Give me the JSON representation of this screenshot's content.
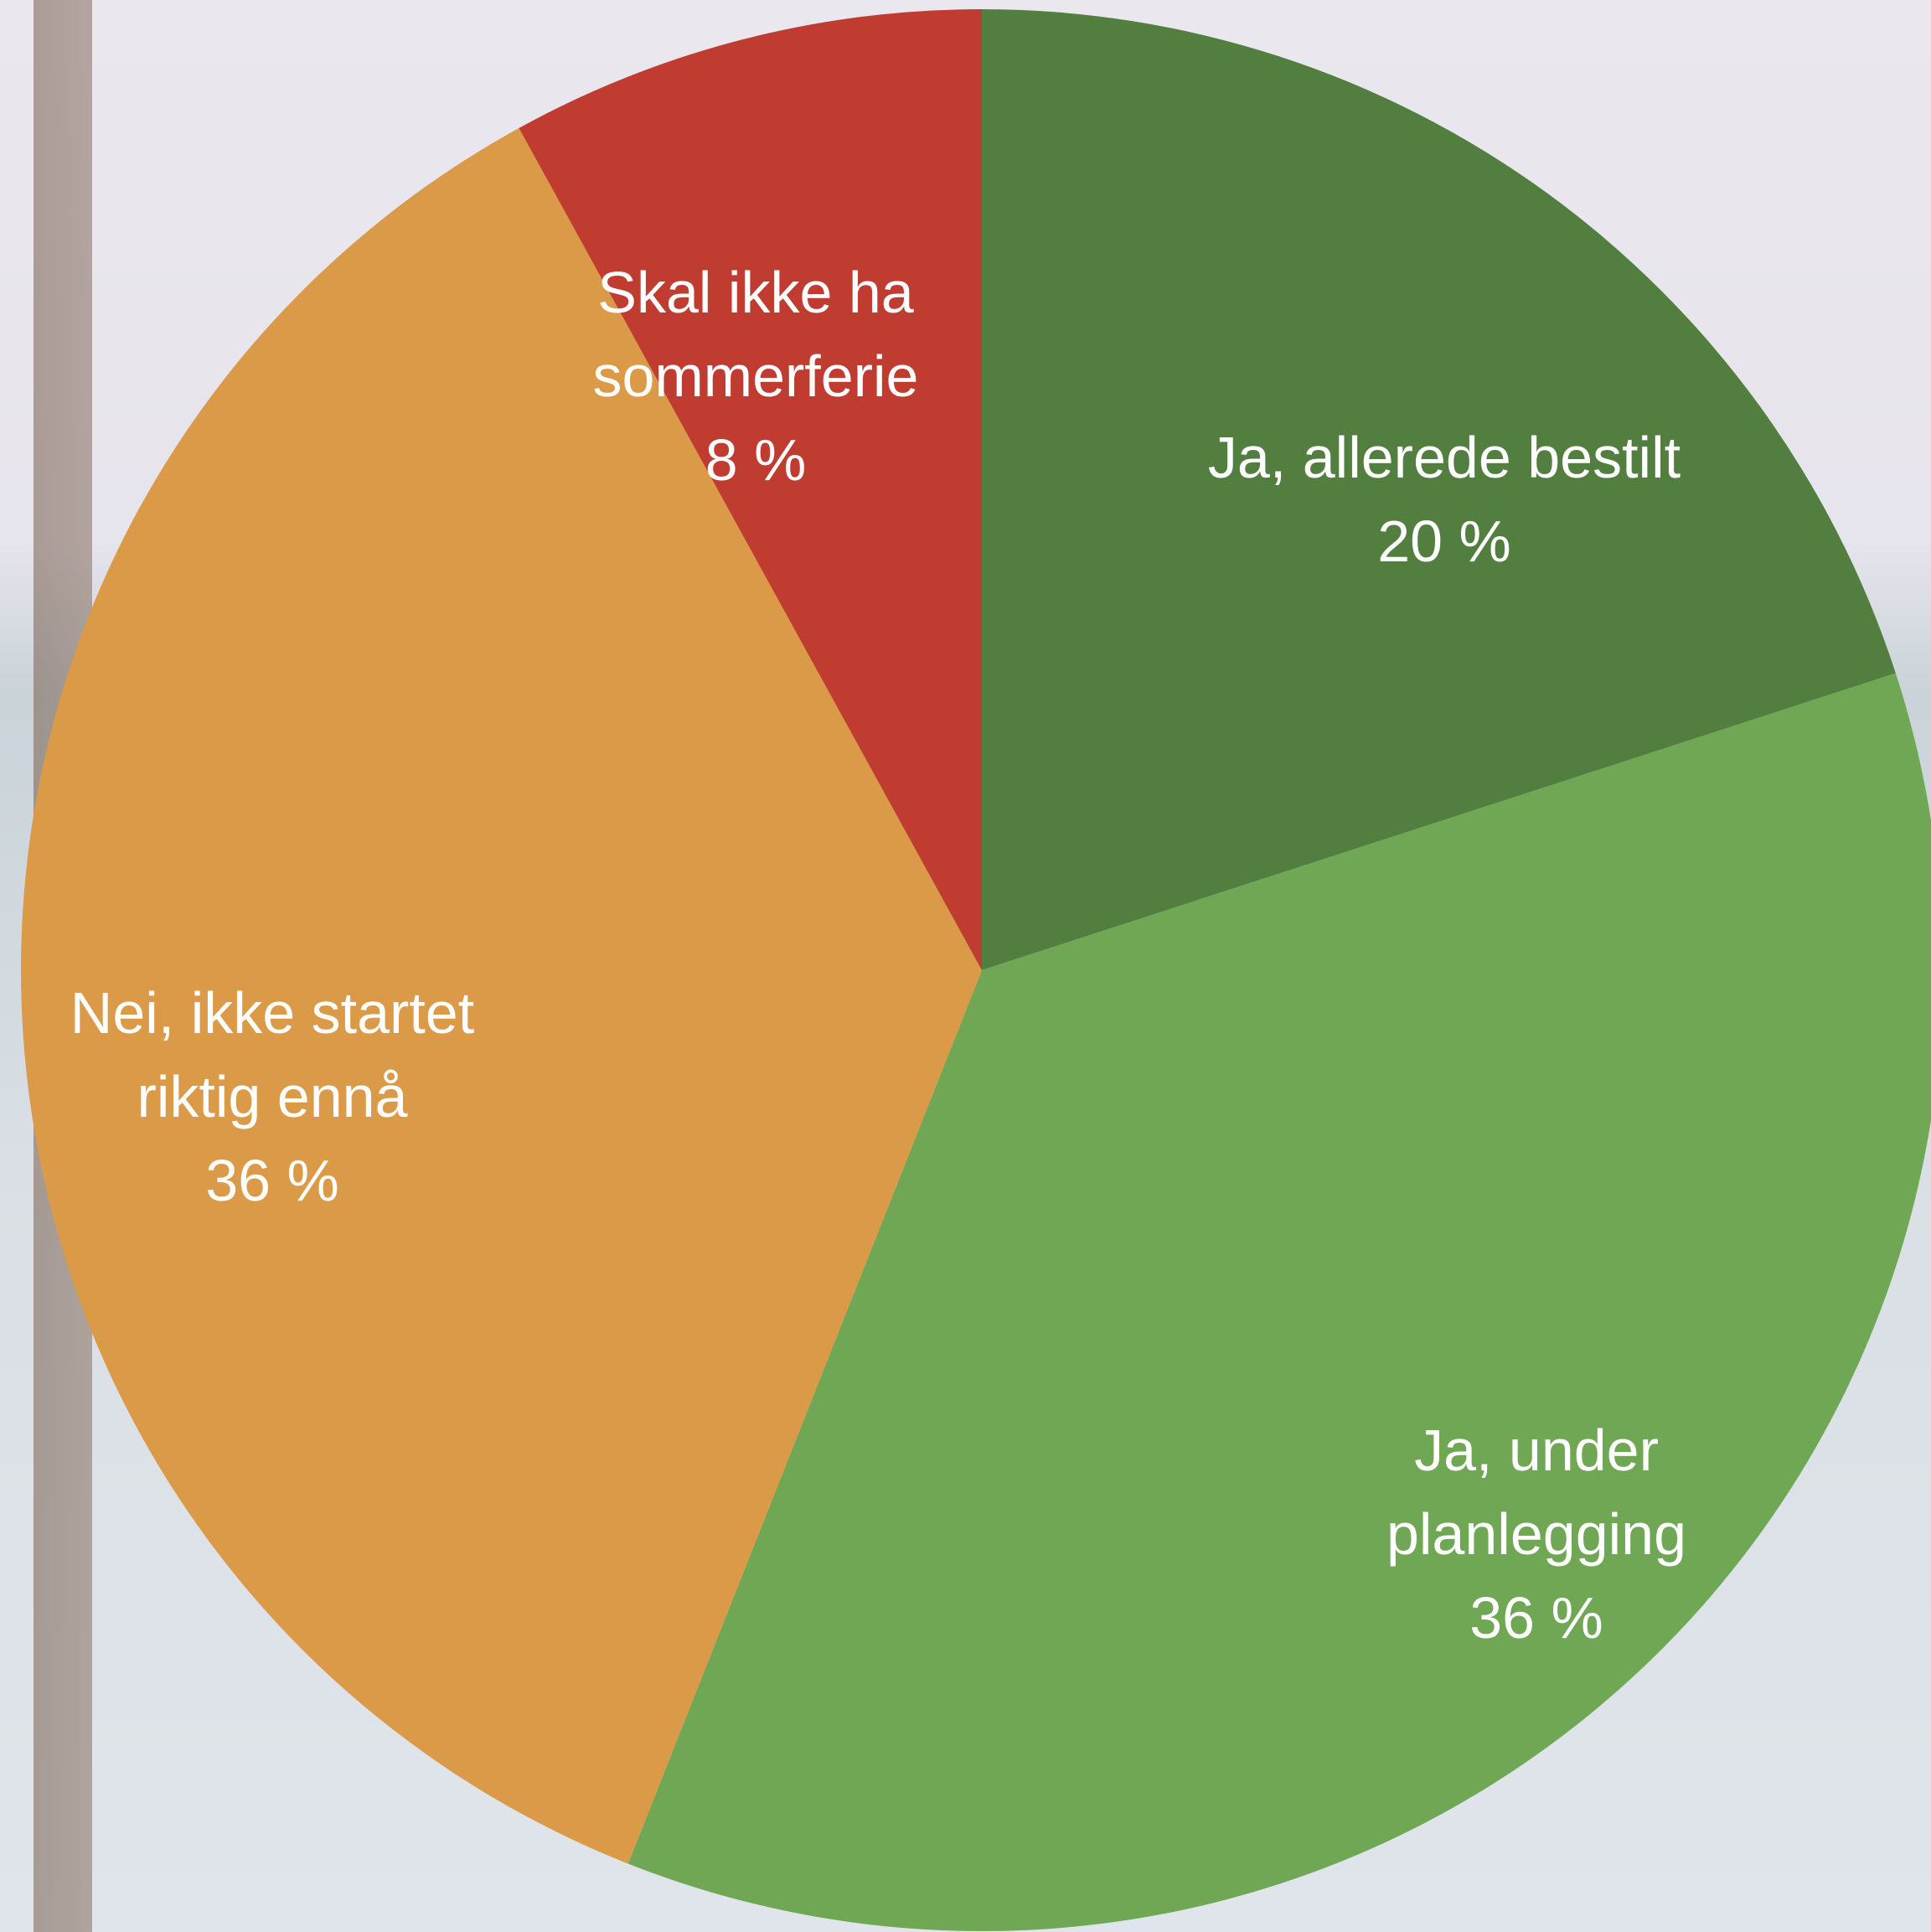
{
  "chart_data": {
    "type": "pie",
    "categories": [
      "Ja, allerede bestilt",
      "Ja, under planlegging",
      "Nei, ikke startet riktig ennå",
      "Skal ikke ha sommerferie"
    ],
    "values": [
      20,
      36,
      36,
      8
    ],
    "value_labels": [
      "20 %",
      "36 %",
      "36 %",
      "8 %"
    ],
    "colors": [
      "#527f3f",
      "#6fa755",
      "#da9a47",
      "#c03b30"
    ]
  }
}
